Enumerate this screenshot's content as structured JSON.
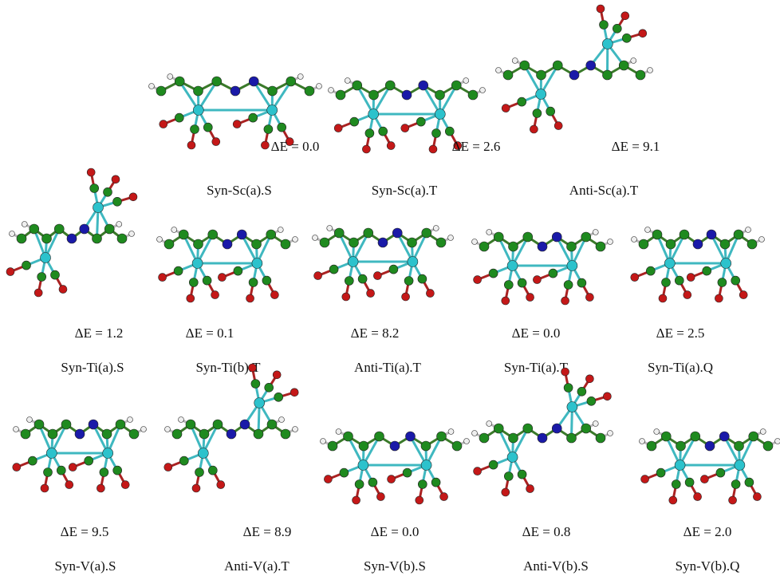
{
  "rows": [
    [
      {
        "energy": "ΔE = 0.0",
        "name": "Syn-Sc(a).S"
      },
      {
        "energy": "ΔE = 2.6",
        "name": "Syn-Sc(a).T"
      },
      {
        "energy": "ΔE = 9.1",
        "name": "Anti-Sc(a).T"
      }
    ],
    [
      {
        "energy": "ΔE = 1.2",
        "name": "Syn-Ti(a).S"
      },
      {
        "energy": "ΔE = 0.1",
        "name": "Syn-Ti(b).T"
      },
      {
        "energy": "ΔE = 8.2",
        "name": "Anti-Ti(a).T"
      },
      {
        "energy": "ΔE = 0.0",
        "name": "Syn-Ti(a).T"
      },
      {
        "energy": "ΔE = 2.5",
        "name": "Syn-Ti(a).Q"
      }
    ],
    [
      {
        "energy": "ΔE = 9.5",
        "name": "Syn-V(a).S"
      },
      {
        "energy": "ΔE = 8.9",
        "name": "Anti-V(a).T"
      },
      {
        "energy": "ΔE = 0.0",
        "name": "Syn-V(b).S"
      },
      {
        "energy": "ΔE = 0.8",
        "name": "Anti-V(b).S"
      },
      {
        "energy": "ΔE = 2.0",
        "name": "Syn-V(b).Q"
      }
    ]
  ]
}
